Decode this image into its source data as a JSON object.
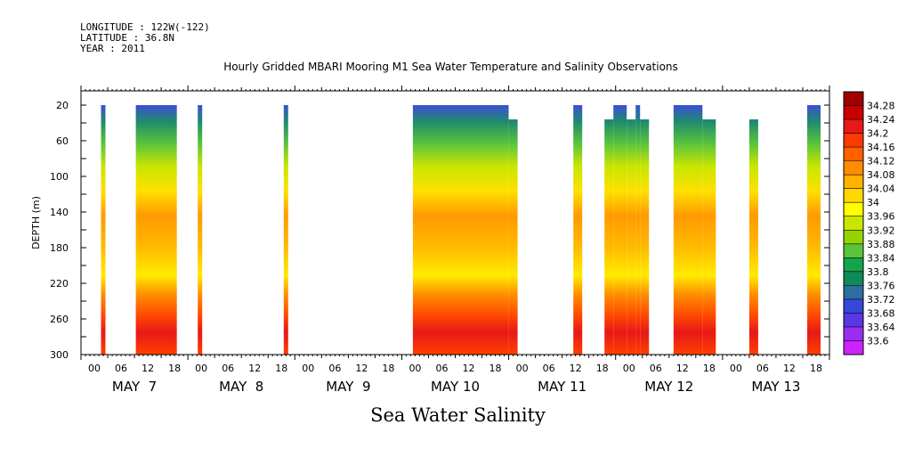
{
  "header": {
    "longitude": "LONGITUDE : 122W(-122)",
    "latitude": "LATITUDE : 36.8N",
    "year": "YEAR : 2011"
  },
  "chart_data": {
    "type": "heatmap",
    "title": "Hourly Gridded MBARI Mooring M1 Sea Water Temperature and Salinity Observations",
    "bottom_title": "Sea Water Salinity",
    "ylabel": "DEPTH (m)",
    "y_ticks": [
      20,
      60,
      100,
      140,
      180,
      220,
      260,
      300
    ],
    "ylim": [
      300,
      4
    ],
    "xlim_hours": [
      0,
      162
    ],
    "x_hour_ticks": [
      "00",
      "06",
      "12",
      "18",
      "00",
      "06",
      "12",
      "18",
      "00",
      "06",
      "12",
      "18",
      "00",
      "06",
      "12",
      "18",
      "00",
      "06",
      "12",
      "18",
      "00",
      "06",
      "12",
      "18",
      "00",
      "06",
      "12",
      "18"
    ],
    "day_labels": [
      "MAY  7",
      "MAY  8",
      "MAY  9",
      "MAY 10",
      "MAY 11",
      "MAY 12",
      "MAY 13"
    ],
    "colorbar": {
      "labels": [
        "34.28",
        "34.24",
        "34.2",
        "34.16",
        "34.12",
        "34.08",
        "34.04",
        "34",
        "33.96",
        "33.92",
        "33.88",
        "33.84",
        "33.8",
        "33.76",
        "33.72",
        "33.68",
        "33.64",
        "33.6"
      ],
      "colors": [
        "#a00000",
        "#c80000",
        "#e81818",
        "#ff3a00",
        "#ff6000",
        "#ff8c00",
        "#ffb200",
        "#ffd800",
        "#ffff00",
        "#c8e600",
        "#96d400",
        "#5cc43c",
        "#14a44c",
        "#118a5a",
        "#2c6ea0",
        "#3648d8",
        "#5a36e6",
        "#9a2ef0",
        "#cc22ff"
      ]
    },
    "data_segments": [
      {
        "start_hour": 4.5,
        "end_hour": 5.5,
        "top_depth": 20
      },
      {
        "start_hour": 12.3,
        "end_hour": 21.5,
        "top_depth": 20
      },
      {
        "start_hour": 26.2,
        "end_hour": 27.2,
        "top_depth": 20
      },
      {
        "start_hour": 45.5,
        "end_hour": 46.5,
        "top_depth": 20
      },
      {
        "start_hour": 74.5,
        "end_hour": 96.0,
        "top_depth": 20
      },
      {
        "start_hour": 96.0,
        "end_hour": 98.0,
        "top_depth": 36
      },
      {
        "start_hour": 110.5,
        "end_hour": 112.5,
        "top_depth": 20
      },
      {
        "start_hour": 117.5,
        "end_hour": 119.5,
        "top_depth": 36
      },
      {
        "start_hour": 119.5,
        "end_hour": 122.5,
        "top_depth": 20
      },
      {
        "start_hour": 122.5,
        "end_hour": 124.5,
        "top_depth": 36
      },
      {
        "start_hour": 124.5,
        "end_hour": 125.5,
        "top_depth": 20
      },
      {
        "start_hour": 125.5,
        "end_hour": 127.5,
        "top_depth": 36
      },
      {
        "start_hour": 133.0,
        "end_hour": 139.5,
        "top_depth": 20
      },
      {
        "start_hour": 139.5,
        "end_hour": 142.5,
        "top_depth": 36
      },
      {
        "start_hour": 150.0,
        "end_hour": 152.0,
        "top_depth": 36
      },
      {
        "start_hour": 163.0,
        "end_hour": 166.0,
        "top_depth": 20
      }
    ]
  }
}
